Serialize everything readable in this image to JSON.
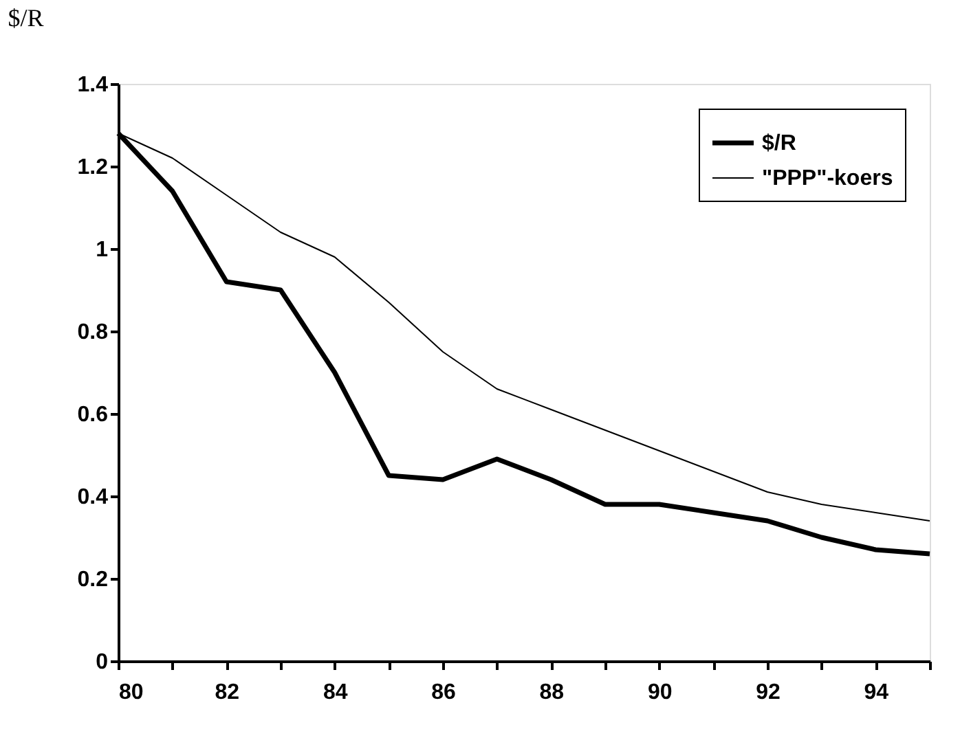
{
  "chart_data": {
    "type": "line",
    "title": "$/R",
    "x": [
      80,
      81,
      82,
      83,
      84,
      85,
      86,
      87,
      88,
      89,
      90,
      91,
      92,
      93,
      94,
      95
    ],
    "series": [
      {
        "name": "$/R",
        "color": "#000000",
        "values": [
          1.28,
          1.14,
          0.92,
          0.9,
          0.7,
          0.45,
          0.44,
          0.49,
          0.44,
          0.38,
          0.38,
          0.36,
          0.34,
          0.3,
          0.27,
          0.26
        ]
      },
      {
        "name": "\"PPP\"-koers",
        "color": "#000000",
        "values": [
          1.28,
          1.22,
          1.13,
          1.04,
          0.98,
          0.87,
          0.75,
          0.66,
          0.61,
          0.56,
          0.51,
          0.46,
          0.41,
          0.38,
          0.36,
          0.34
        ]
      }
    ],
    "xlim": [
      80,
      95
    ],
    "xticks": [
      80,
      {
        "value": 81,
        "label": null
      },
      82,
      {
        "value": 83,
        "label": null
      },
      84,
      {
        "value": 85,
        "label": null
      },
      86,
      {
        "value": 87,
        "label": null
      },
      88,
      {
        "value": 89,
        "label": null
      },
      90,
      {
        "value": 91,
        "label": null
      },
      92,
      {
        "value": 93,
        "label": null
      },
      94,
      {
        "value": 95,
        "label": null
      }
    ],
    "ylim": [
      0,
      1.4
    ],
    "yticks": [
      0,
      0.2,
      0.4,
      0.6,
      0.8,
      1,
      1.2,
      1.4
    ],
    "grid": false,
    "legend": "top right",
    "marker": "none",
    "line_style": "solid"
  }
}
